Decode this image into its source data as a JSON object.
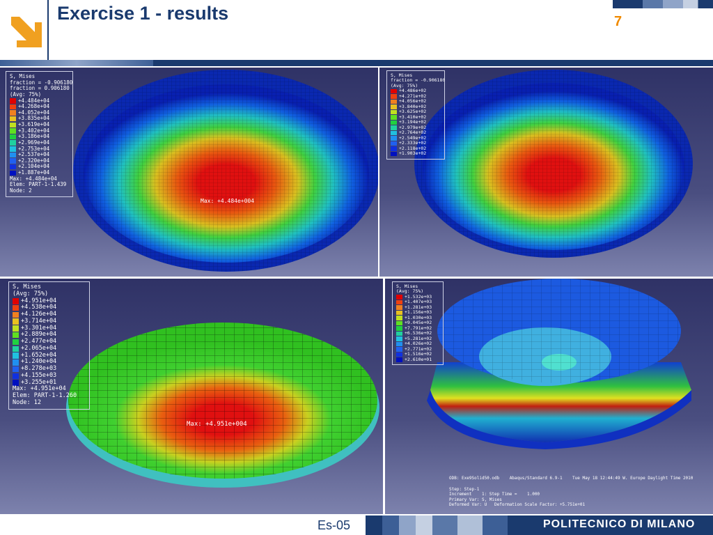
{
  "header": {
    "title": "Exercise 1 - results",
    "page_number": "7"
  },
  "panels": [
    {
      "legend": {
        "title": [
          "S, Mises",
          "fraction = -0.906180",
          "fraction = 0.906180",
          "(Avg: 75%)"
        ],
        "values": [
          "+4.484e+04",
          "+4.268e+04",
          "+4.052e+04",
          "+3.835e+04",
          "+3.619e+04",
          "+3.402e+04",
          "+3.186e+04",
          "+2.969e+04",
          "+2.753e+04",
          "+2.537e+04",
          "+2.320e+04",
          "+2.104e+04",
          "+1.887e+04"
        ],
        "footer": [
          "Max: +4.484e+04",
          "Elem: PART-1-1.439",
          "Node: 2"
        ]
      },
      "annotation": "Max: +4.484e+004"
    },
    {
      "legend": {
        "title": [
          "S, Mises",
          "fraction = -0.906180",
          "(Avg: 75%)"
        ],
        "values": [
          "+4.486e+02",
          "+4.271e+02",
          "+4.056e+02",
          "+3.840e+02",
          "+3.625e+02",
          "+3.410e+02",
          "+3.194e+02",
          "+2.979e+02",
          "+2.764e+02",
          "+2.549e+02",
          "+2.333e+02",
          "+2.118e+02",
          "+1.903e+02"
        ],
        "footer": []
      }
    },
    {
      "legend": {
        "title": [
          "S, Mises",
          "(Avg: 75%)"
        ],
        "values": [
          "+4.951e+04",
          "+4.538e+04",
          "+4.126e+04",
          "+3.714e+04",
          "+3.301e+04",
          "+2.889e+04",
          "+2.477e+04",
          "+2.065e+04",
          "+1.652e+04",
          "+1.240e+04",
          "+8.278e+03",
          "+4.155e+03",
          "+3.255e+01"
        ],
        "footer": [
          "Max: +4.951e+04",
          "Elem: PART-1-1.260",
          "Node: 12"
        ]
      },
      "annotation": "Max: +4.951e+004"
    },
    {
      "legend": {
        "title": [
          "S, Mises",
          "(Avg: 75%)"
        ],
        "values": [
          "+1.532e+03",
          "+1.407e+03",
          "+1.281e+03",
          "+1.156e+03",
          "+1.030e+03",
          "+9.045e+02",
          "+7.791e+02",
          "+6.536e+02",
          "+5.281e+02",
          "+4.026e+02",
          "+2.771e+02",
          "+1.516e+02",
          "+2.610e+01"
        ],
        "footer": []
      },
      "info": [
        "ODB: Exe9Solid50.odb    Abaqus/Standard 6.9-1    Tue May 18 12:44:49 W. Europe Daylight Time 2010",
        "Step: Step-1",
        "Increment    1: Step Time =    1.000",
        "Primary Var: S, Mises",
        "Deformed Var: U   Deformation Scale Factor: +5.751e+01"
      ]
    }
  ],
  "footer": {
    "code": "Es-05",
    "institution": "POLITECNICO DI MILANO"
  }
}
